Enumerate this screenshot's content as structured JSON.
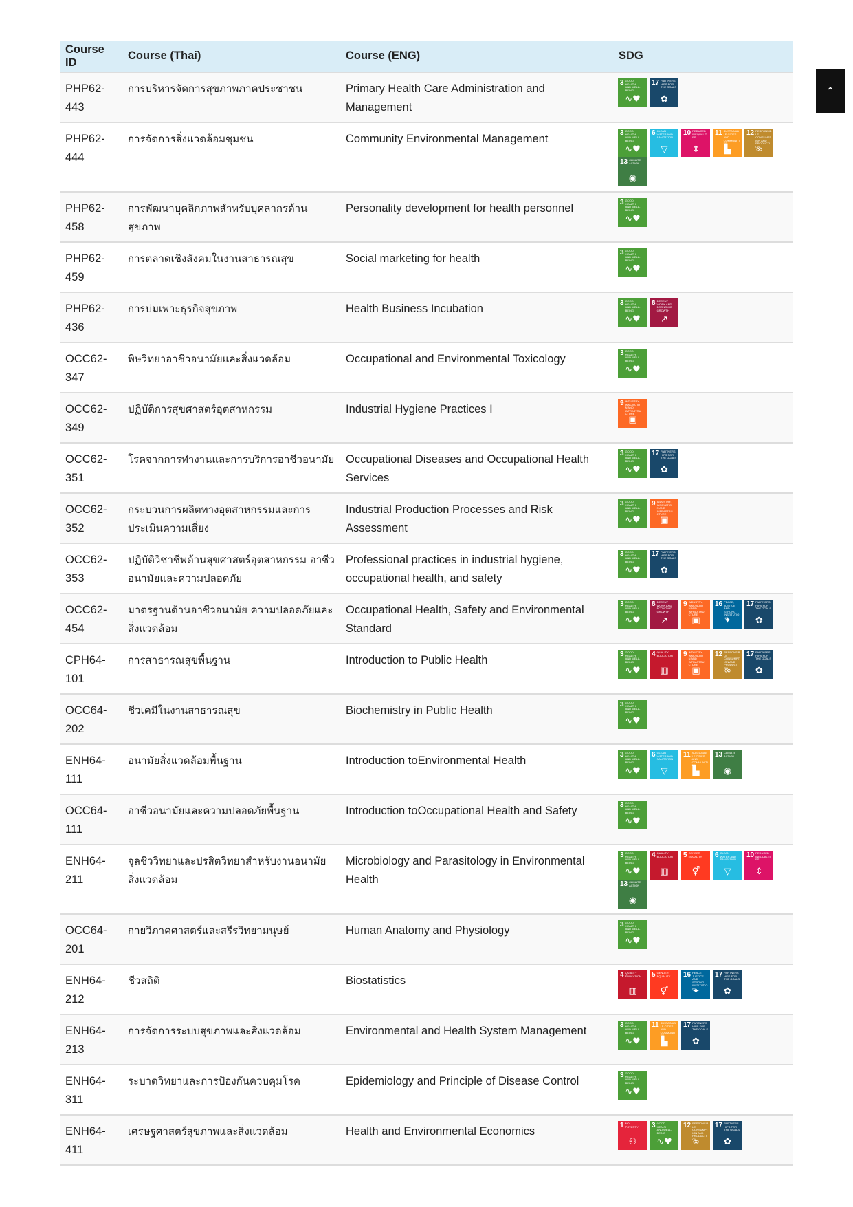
{
  "headers": {
    "id": "Course ID",
    "thai": "Course (Thai)",
    "eng": "Course (ENG)",
    "sdg": "SDG"
  },
  "scroll_top": {
    "icon": "chevron-up-icon",
    "glyph": "⌃"
  },
  "sdg_goals": {
    "1": {
      "title": "No Poverty",
      "color": "#E5243B",
      "glyph": "⚇"
    },
    "3": {
      "title": "Good Health and Well-being",
      "color": "#4C9F38",
      "glyph": "∿♥"
    },
    "4": {
      "title": "Quality Education",
      "color": "#C5192D",
      "glyph": "▥"
    },
    "5": {
      "title": "Gender Equality",
      "color": "#FF3A21",
      "glyph": "⚥"
    },
    "6": {
      "title": "Clean Water and Sanitation",
      "color": "#26BDE2",
      "glyph": "▽"
    },
    "8": {
      "title": "Decent Work and Economic Growth",
      "color": "#A21942",
      "glyph": "↗"
    },
    "9": {
      "title": "Industry, Innovation and Infrastructure",
      "color": "#FD6925",
      "glyph": "▣"
    },
    "10": {
      "title": "Reduced Inequalities",
      "color": "#DD1367",
      "glyph": "⇕"
    },
    "11": {
      "title": "Sustainable Cities and Communities",
      "color": "#FD9D24",
      "glyph": "▙"
    },
    "12": {
      "title": "Responsible Consumption and Production",
      "color": "#BF8B2E",
      "glyph": "∞"
    },
    "13": {
      "title": "Climate Action",
      "color": "#3F7E44",
      "glyph": "◉"
    },
    "16": {
      "title": "Peace, Justice and Strong Institutions",
      "color": "#00689D",
      "glyph": "✦"
    },
    "17": {
      "title": "Partnerships for the Goals",
      "color": "#19486A",
      "glyph": "✿"
    }
  },
  "rows": [
    {
      "id": "PHP62-443",
      "thai": "การบริหารจัดการสุขภาพภาคประชาชน",
      "eng": "Primary Health Care Administration and Management",
      "sdgs": [
        "3",
        "17"
      ]
    },
    {
      "id": "PHP62-444",
      "thai": "การจัดการสิ่งแวดล้อมชุมชน",
      "eng": "Community Environmental Management",
      "sdgs": [
        "3",
        "6",
        "10",
        "11",
        "12",
        "13"
      ]
    },
    {
      "id": "PHP62-458",
      "thai": "การพัฒนาบุคลิกภาพสำหรับบุคลากรด้านสุขภาพ",
      "eng": "Personality development for health personnel",
      "sdgs": [
        "3"
      ]
    },
    {
      "id": "PHP62-459",
      "thai": "การตลาดเชิงสังคมในงานสาธารณสุข",
      "eng": "Social marketing for health",
      "sdgs": [
        "3"
      ]
    },
    {
      "id": "PHP62-436",
      "thai": "การบ่มเพาะธุรกิจสุขภาพ",
      "eng": "Health Business Incubation",
      "sdgs": [
        "3",
        "8"
      ]
    },
    {
      "id": "OCC62-347",
      "thai": "พิษวิทยาอาชีวอนามัยและสิ่งแวดล้อม",
      "eng": "Occupational and Environmental Toxicology",
      "sdgs": [
        "3"
      ]
    },
    {
      "id": "OCC62-349",
      "thai": "ปฏิบัติการสุขศาสตร์อุตสาหกรรม",
      "eng": "Industrial Hygiene Practices I",
      "sdgs": [
        "9"
      ]
    },
    {
      "id": "OCC62-351",
      "thai": "โรคจากการทำงานและการบริการอาชีวอนามัย",
      "eng": "Occupational Diseases and Occupational Health Services",
      "sdgs": [
        "3",
        "17"
      ]
    },
    {
      "id": "OCC62-352",
      "thai": "กระบวนการผลิตทางอุตสาหกรรมและการประเมินความเสี่ยง",
      "eng": "Industrial Production Processes and Risk Assessment",
      "sdgs": [
        "3",
        "9"
      ]
    },
    {
      "id": "OCC62-353",
      "thai": "ปฏิบัติวิชาชีพด้านสุขศาสตร์อุตสาหกรรม อาชีวอนามัยและความปลอดภัย",
      "eng": "Professional practices in industrial hygiene, occupational health, and safety",
      "sdgs": [
        "3",
        "17"
      ]
    },
    {
      "id": "OCC62-454",
      "thai": "มาตรฐานด้านอาชีวอนามัย ความปลอดภัยและสิ่งแวดล้อม",
      "eng": "Occupational Health, Safety and Environmental Standard",
      "sdgs": [
        "3",
        "8",
        "9",
        "16",
        "17"
      ]
    },
    {
      "id": "CPH64-101",
      "thai": "การสาธารณสุขพื้นฐาน",
      "eng": "Introduction to Public Health",
      "sdgs": [
        "3",
        "4",
        "9",
        "12",
        "17"
      ]
    },
    {
      "id": "OCC64-202",
      "thai": "ชีวเคมีในงานสาธารณสุข",
      "eng": "Biochemistry in Public Health",
      "sdgs": [
        "3"
      ]
    },
    {
      "id": "ENH64-111",
      "thai": "อนามัยสิ่งแวดล้อมพื้นฐาน",
      "eng": "Introduction toEnvironmental Health",
      "sdgs": [
        "3",
        "6",
        "11",
        "13"
      ]
    },
    {
      "id": "OCC64-111",
      "thai": "อาชีวอนามัยและความปลอดภัยพื้นฐาน",
      "eng": "Introduction toOccupational Health and Safety",
      "sdgs": [
        "3"
      ]
    },
    {
      "id": "ENH64-211",
      "thai": "จุลชีววิทยาและปรสิตวิทยาสำหรับงานอนามัยสิ่งแวดล้อม",
      "eng": "Microbiology and Parasitology in Environmental Health",
      "sdgs": [
        "3",
        "4",
        "5",
        "6",
        "10",
        "13"
      ]
    },
    {
      "id": "OCC64-201",
      "thai": "กายวิภาคศาสตร์และสรีรวิทยามนุษย์",
      "eng": "Human Anatomy and Physiology",
      "sdgs": [
        "3"
      ]
    },
    {
      "id": "ENH64-212",
      "thai": "ชีวสถิติ",
      "eng": "Biostatistics",
      "sdgs": [
        "4",
        "5",
        "16",
        "17"
      ]
    },
    {
      "id": "ENH64-213",
      "thai": "การจัดการระบบสุขภาพและสิ่งแวดล้อม",
      "eng": "Environmental and Health System Management",
      "sdgs": [
        "3",
        "11",
        "17"
      ]
    },
    {
      "id": "ENH64-311",
      "thai": "ระบาดวิทยาและการป้องกันควบคุมโรค",
      "eng": "Epidemiology and Principle of Disease Control",
      "sdgs": [
        "3"
      ]
    },
    {
      "id": "ENH64-411",
      "thai": "เศรษฐศาสตร์สุขภาพและสิ่งแวดล้อม",
      "eng": "Health and Environmental Economics",
      "sdgs": [
        "1",
        "3",
        "12",
        "17"
      ]
    }
  ]
}
